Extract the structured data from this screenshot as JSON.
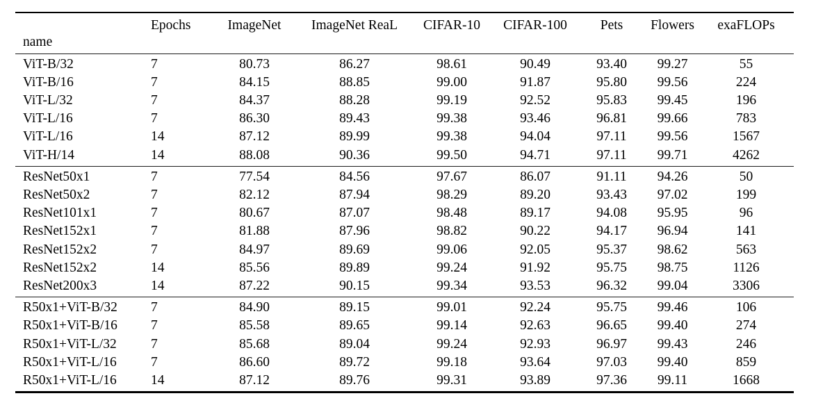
{
  "page": {
    "background_color": "#ffffff",
    "text_color": "#000000",
    "rule_color": "#000000"
  },
  "table": {
    "columns": [
      "name",
      "Epochs",
      "ImageNet",
      "ImageNet ReaL",
      "CIFAR-10",
      "CIFAR-100",
      "Pets",
      "Flowers",
      "exaFLOPs"
    ],
    "groups": [
      {
        "name": "vit-models",
        "rows": [
          [
            "ViT-B/32",
            "7",
            "80.73",
            "86.27",
            "98.61",
            "90.49",
            "93.40",
            "99.27",
            "55"
          ],
          [
            "ViT-B/16",
            "7",
            "84.15",
            "88.85",
            "99.00",
            "91.87",
            "95.80",
            "99.56",
            "224"
          ],
          [
            "ViT-L/32",
            "7",
            "84.37",
            "88.28",
            "99.19",
            "92.52",
            "95.83",
            "99.45",
            "196"
          ],
          [
            "ViT-L/16",
            "7",
            "86.30",
            "89.43",
            "99.38",
            "93.46",
            "96.81",
            "99.66",
            "783"
          ],
          [
            "ViT-L/16",
            "14",
            "87.12",
            "89.99",
            "99.38",
            "94.04",
            "97.11",
            "99.56",
            "1567"
          ],
          [
            "ViT-H/14",
            "14",
            "88.08",
            "90.36",
            "99.50",
            "94.71",
            "97.11",
            "99.71",
            "4262"
          ]
        ]
      },
      {
        "name": "resnet-models",
        "rows": [
          [
            "ResNet50x1",
            "7",
            "77.54",
            "84.56",
            "97.67",
            "86.07",
            "91.11",
            "94.26",
            "50"
          ],
          [
            "ResNet50x2",
            "7",
            "82.12",
            "87.94",
            "98.29",
            "89.20",
            "93.43",
            "97.02",
            "199"
          ],
          [
            "ResNet101x1",
            "7",
            "80.67",
            "87.07",
            "98.48",
            "89.17",
            "94.08",
            "95.95",
            "96"
          ],
          [
            "ResNet152x1",
            "7",
            "81.88",
            "87.96",
            "98.82",
            "90.22",
            "94.17",
            "96.94",
            "141"
          ],
          [
            "ResNet152x2",
            "7",
            "84.97",
            "89.69",
            "99.06",
            "92.05",
            "95.37",
            "98.62",
            "563"
          ],
          [
            "ResNet152x2",
            "14",
            "85.56",
            "89.89",
            "99.24",
            "91.92",
            "95.75",
            "98.75",
            "1126"
          ],
          [
            "ResNet200x3",
            "14",
            "87.22",
            "90.15",
            "99.34",
            "93.53",
            "96.32",
            "99.04",
            "3306"
          ]
        ]
      },
      {
        "name": "hybrid-models",
        "rows": [
          [
            "R50x1+ViT-B/32",
            "7",
            "84.90",
            "89.15",
            "99.01",
            "92.24",
            "95.75",
            "99.46",
            "106"
          ],
          [
            "R50x1+ViT-B/16",
            "7",
            "85.58",
            "89.65",
            "99.14",
            "92.63",
            "96.65",
            "99.40",
            "274"
          ],
          [
            "R50x1+ViT-L/32",
            "7",
            "85.68",
            "89.04",
            "99.24",
            "92.93",
            "96.97",
            "99.43",
            "246"
          ],
          [
            "R50x1+ViT-L/16",
            "7",
            "86.60",
            "89.72",
            "99.18",
            "93.64",
            "97.03",
            "99.40",
            "859"
          ],
          [
            "R50x1+ViT-L/16",
            "14",
            "87.12",
            "89.76",
            "99.31",
            "93.89",
            "97.36",
            "99.11",
            "1668"
          ]
        ]
      }
    ]
  }
}
